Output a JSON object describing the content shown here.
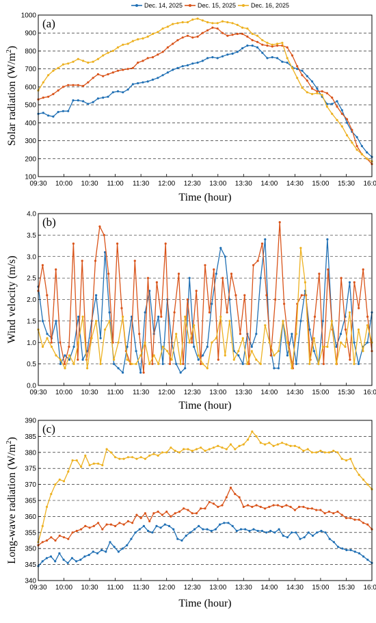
{
  "legend": {
    "entries": [
      {
        "name": "Dec. 14, 2025",
        "color": "#1f6fb4"
      },
      {
        "name": "Dec. 15, 2025",
        "color": "#d95319"
      },
      {
        "name": "Dec. 16, 2025",
        "color": "#edb120"
      }
    ],
    "placement": "top-center"
  },
  "chart_data": [
    {
      "type": "line",
      "panel_label": "(a)",
      "xlabel": "Time (hour)",
      "ylabel_main": "Solar radiation (W/m",
      "ylabel_sup": "2",
      "ylabel_tail": ")",
      "xticks": [
        "09:30",
        "10:00",
        "10:30",
        "11:00",
        "11:30",
        "12:00",
        "12:30",
        "13:00",
        "13:30",
        "14:00",
        "14:30",
        "15:00",
        "15:30",
        "16:00"
      ],
      "xlim": [
        0,
        390
      ],
      "ylim": [
        100,
        1000
      ],
      "yticks": [
        100,
        200,
        300,
        400,
        500,
        600,
        700,
        800,
        900,
        1000
      ],
      "grid": true,
      "series": [
        {
          "name": "Dec. 14, 2025",
          "color": "#1f6fb4",
          "values": [
            450,
            455,
            440,
            435,
            460,
            465,
            465,
            525,
            525,
            520,
            505,
            515,
            535,
            540,
            545,
            570,
            575,
            570,
            585,
            615,
            620,
            625,
            630,
            640,
            650,
            665,
            680,
            695,
            705,
            715,
            720,
            730,
            735,
            745,
            760,
            765,
            760,
            770,
            780,
            785,
            795,
            815,
            830,
            830,
            820,
            790,
            760,
            765,
            760,
            740,
            735,
            710,
            700,
            690,
            660,
            630,
            590,
            545,
            505,
            505,
            520,
            470,
            400,
            350,
            320,
            270,
            235,
            210
          ]
        },
        {
          "name": "Dec. 15, 2025",
          "color": "#d95319",
          "values": [
            530,
            540,
            545,
            560,
            580,
            600,
            610,
            610,
            610,
            605,
            625,
            650,
            670,
            660,
            670,
            680,
            690,
            695,
            700,
            705,
            735,
            745,
            760,
            765,
            780,
            795,
            820,
            840,
            860,
            875,
            885,
            875,
            880,
            900,
            915,
            930,
            925,
            900,
            885,
            890,
            895,
            895,
            880,
            860,
            850,
            835,
            830,
            825,
            830,
            830,
            820,
            775,
            715,
            665,
            635,
            590,
            575,
            575,
            565,
            540,
            490,
            450,
            420,
            360,
            270,
            225,
            200,
            170
          ]
        },
        {
          "name": "Dec. 16, 2025",
          "color": "#edb120",
          "values": [
            580,
            625,
            665,
            690,
            705,
            725,
            730,
            740,
            755,
            745,
            735,
            740,
            755,
            775,
            790,
            800,
            820,
            835,
            840,
            855,
            865,
            870,
            880,
            895,
            905,
            925,
            935,
            950,
            955,
            960,
            960,
            975,
            980,
            970,
            960,
            955,
            955,
            965,
            960,
            955,
            945,
            930,
            925,
            895,
            885,
            860,
            845,
            835,
            840,
            845,
            760,
            705,
            650,
            595,
            570,
            560,
            565,
            555,
            490,
            450,
            415,
            380,
            330,
            290,
            250,
            225,
            200,
            185
          ]
        }
      ]
    },
    {
      "type": "line",
      "panel_label": "(b)",
      "xlabel": "Time (hour)",
      "ylabel_main": "Wind velocity (m/s)",
      "xticks": [
        "09:30",
        "10:00",
        "10:30",
        "11:00",
        "11:30",
        "12:00",
        "12:30",
        "13:00",
        "13:30",
        "14:00",
        "14:30",
        "15:00",
        "15:30",
        "16:00"
      ],
      "xlim": [
        0,
        390
      ],
      "ylim": [
        0,
        4
      ],
      "yticks": [
        "0.0",
        "0.5",
        "1.0",
        "1.5",
        "2.0",
        "2.5",
        "3.0",
        "3.5",
        "4.0"
      ],
      "grid": true,
      "series": [
        {
          "name": "Dec. 14, 2025",
          "color": "#1f6fb4",
          "values": [
            2.3,
            1.5,
            1.2,
            1.1,
            1.5,
            0.5,
            0.7,
            0.6,
            0.9,
            1.6,
            0.6,
            0.8,
            1.5,
            2.1,
            1.1,
            3.1,
            1.7,
            0.5,
            0.4,
            0.3,
            0.9,
            1.6,
            0.8,
            0.3,
            1.7,
            2.2,
            1.2,
            1.6,
            0.5,
            2.0,
            1.0,
            0.5,
            0.3,
            0.4,
            2.5,
            0.9,
            0.6,
            0.7,
            0.9,
            1.9,
            2.6,
            3.2,
            3.0,
            2.0,
            0.8,
            0.7,
            0.5,
            1.2,
            0.9,
            1.2,
            2.5,
            3.4,
            1.0,
            0.4,
            0.4,
            1.5,
            0.7,
            1.2,
            0.5,
            1.5,
            2.2,
            1.3,
            0.8,
            0.5,
            1.5,
            3.4,
            1.5,
            0.9,
            1.2,
            1.6,
            2.4,
            1.0,
            0.5,
            0.9,
            1.0,
            1.7
          ]
        },
        {
          "name": "Dec. 15, 2025",
          "color": "#d95319",
          "values": [
            2.2,
            2.8,
            2.1,
            1.0,
            2.7,
            1.0,
            0.5,
            0.9,
            3.3,
            0.6,
            2.9,
            0.6,
            1.1,
            2.9,
            3.7,
            3.5,
            2.6,
            1.0,
            3.3,
            1.8,
            0.8,
            0.5,
            2.9,
            1.2,
            0.3,
            2.5,
            0.5,
            2.4,
            1.6,
            3.3,
            0.5,
            1.7,
            2.6,
            0.5,
            2.0,
            1.0,
            2.2,
            0.5,
            2.8,
            1.7,
            2.7,
            0.6,
            2.5,
            1.7,
            2.6,
            2.1,
            1.2,
            2.1,
            0.5,
            2.8,
            2.9,
            3.3,
            2.1,
            0.7,
            2.0,
            3.8,
            1.9,
            1.0,
            0.4,
            1.9,
            2.1,
            2.1,
            0.6,
            1.6,
            2.6,
            0.5,
            2.7,
            1.3,
            0.5,
            2.5,
            1.3,
            0.6,
            2.4,
            1.8,
            2.7,
            1.6,
            0.8
          ]
        },
        {
          "name": "Dec. 16, 2025",
          "color": "#edb120",
          "values": [
            1.3,
            0.9,
            1.1,
            0.9,
            0.7,
            0.6,
            0.4,
            0.7,
            0.5,
            1.0,
            1.6,
            0.4,
            1.1,
            1.5,
            0.5,
            1.3,
            1.5,
            0.6,
            1.0,
            1.6,
            0.6,
            0.5,
            0.5,
            0.7,
            1.0,
            0.5,
            0.7,
            0.5,
            0.9,
            0.8,
            0.6,
            1.2,
            0.5,
            1.6,
            1.0,
            1.4,
            0.7,
            0.5,
            0.4,
            1.0,
            1.1,
            1.6,
            0.7,
            1.5,
            0.6,
            0.8,
            1.1,
            0.5,
            0.8,
            0.6,
            0.5,
            1.4,
            1.0,
            0.7,
            0.8,
            1.5,
            1.0,
            0.4,
            1.2,
            3.2,
            2.4,
            0.5,
            1.1,
            0.5,
            0.9,
            0.9,
            1.5,
            0.5,
            1.0,
            0.9,
            1.7,
            0.5,
            1.3,
            0.8,
            1.4,
            1.0
          ]
        }
      ]
    },
    {
      "type": "line",
      "panel_label": "(c)",
      "xlabel": "Time (hour)",
      "ylabel_main": "Long-wave radiation (W/m",
      "ylabel_sup": "2",
      "ylabel_tail": ")",
      "xticks": [
        "09:30",
        "10:00",
        "10:30",
        "11:00",
        "11:30",
        "12:00",
        "12:30",
        "13:00",
        "13:30",
        "14:00",
        "14:30",
        "15:00",
        "15:30",
        "16:00"
      ],
      "xlim": [
        0,
        390
      ],
      "ylim": [
        340,
        390
      ],
      "yticks": [
        340,
        345,
        350,
        355,
        360,
        365,
        370,
        375,
        380,
        385,
        390
      ],
      "grid": true,
      "series": [
        {
          "name": "Dec. 14, 2025",
          "color": "#1f6fb4",
          "values": [
            344.5,
            346,
            347,
            347.5,
            346,
            348.5,
            346.5,
            345.5,
            347,
            346,
            346.5,
            347.5,
            348,
            349,
            348.5,
            349.5,
            349,
            352,
            350.5,
            349,
            350,
            351,
            353,
            355,
            356,
            357,
            355.5,
            355,
            357,
            356.5,
            357.5,
            357,
            356,
            353,
            352.5,
            354,
            355,
            356,
            357,
            356,
            356,
            355.5,
            356,
            357.5,
            358,
            358,
            357,
            355.5,
            356,
            356,
            355.5,
            356,
            355.5,
            355.5,
            355,
            355.5,
            355,
            356,
            354,
            353.5,
            355,
            355,
            353,
            353.5,
            355,
            354,
            355,
            355.5,
            355,
            353,
            352,
            350.5,
            350,
            349.5,
            349.5,
            349,
            348.5,
            347.5,
            346.5,
            345.5
          ]
        },
        {
          "name": "Dec. 15, 2025",
          "color": "#d95319",
          "values": [
            351,
            352,
            352.5,
            353.5,
            352.5,
            354,
            353.5,
            353,
            355,
            355.5,
            356,
            357,
            356.5,
            357,
            358,
            356,
            357.5,
            357.5,
            357,
            358,
            357.5,
            358.5,
            358,
            360.5,
            359.5,
            361,
            358.5,
            361,
            361.5,
            360.5,
            361.5,
            360,
            361,
            361.5,
            362.5,
            362,
            361,
            361,
            362.5,
            362.5,
            364.5,
            364,
            363,
            363.5,
            366,
            369,
            367,
            366,
            363,
            363.5,
            363,
            363.5,
            363,
            362.5,
            363,
            363.5,
            363.5,
            363,
            363.5,
            363,
            362,
            363,
            363,
            362.5,
            362.5,
            362,
            362,
            361,
            361.5,
            361,
            361.5,
            360.5,
            359.5,
            359.5,
            359,
            359,
            358,
            357.5,
            356
          ]
        },
        {
          "name": "Dec. 16, 2025",
          "color": "#edb120",
          "values": [
            352,
            357,
            363,
            367,
            370,
            371.5,
            371,
            374,
            377.5,
            377.5,
            375.5,
            379,
            376,
            376.5,
            376.5,
            376,
            381,
            380,
            378.5,
            378,
            378,
            378.5,
            378.5,
            378,
            378.5,
            378,
            379,
            379.5,
            379,
            380,
            380,
            381.5,
            380.5,
            380,
            381,
            381,
            380.5,
            381,
            381.5,
            380.5,
            381,
            381.5,
            382,
            381.5,
            381,
            382.5,
            381,
            382,
            382.5,
            384,
            386.5,
            385,
            383,
            382.5,
            383,
            382,
            382.5,
            383,
            382.5,
            382,
            382,
            381.5,
            380.5,
            381,
            380,
            380,
            380.5,
            380,
            380,
            380.5,
            380,
            378,
            377.5,
            378,
            375,
            373,
            371.5,
            370,
            368.5
          ]
        }
      ]
    }
  ]
}
